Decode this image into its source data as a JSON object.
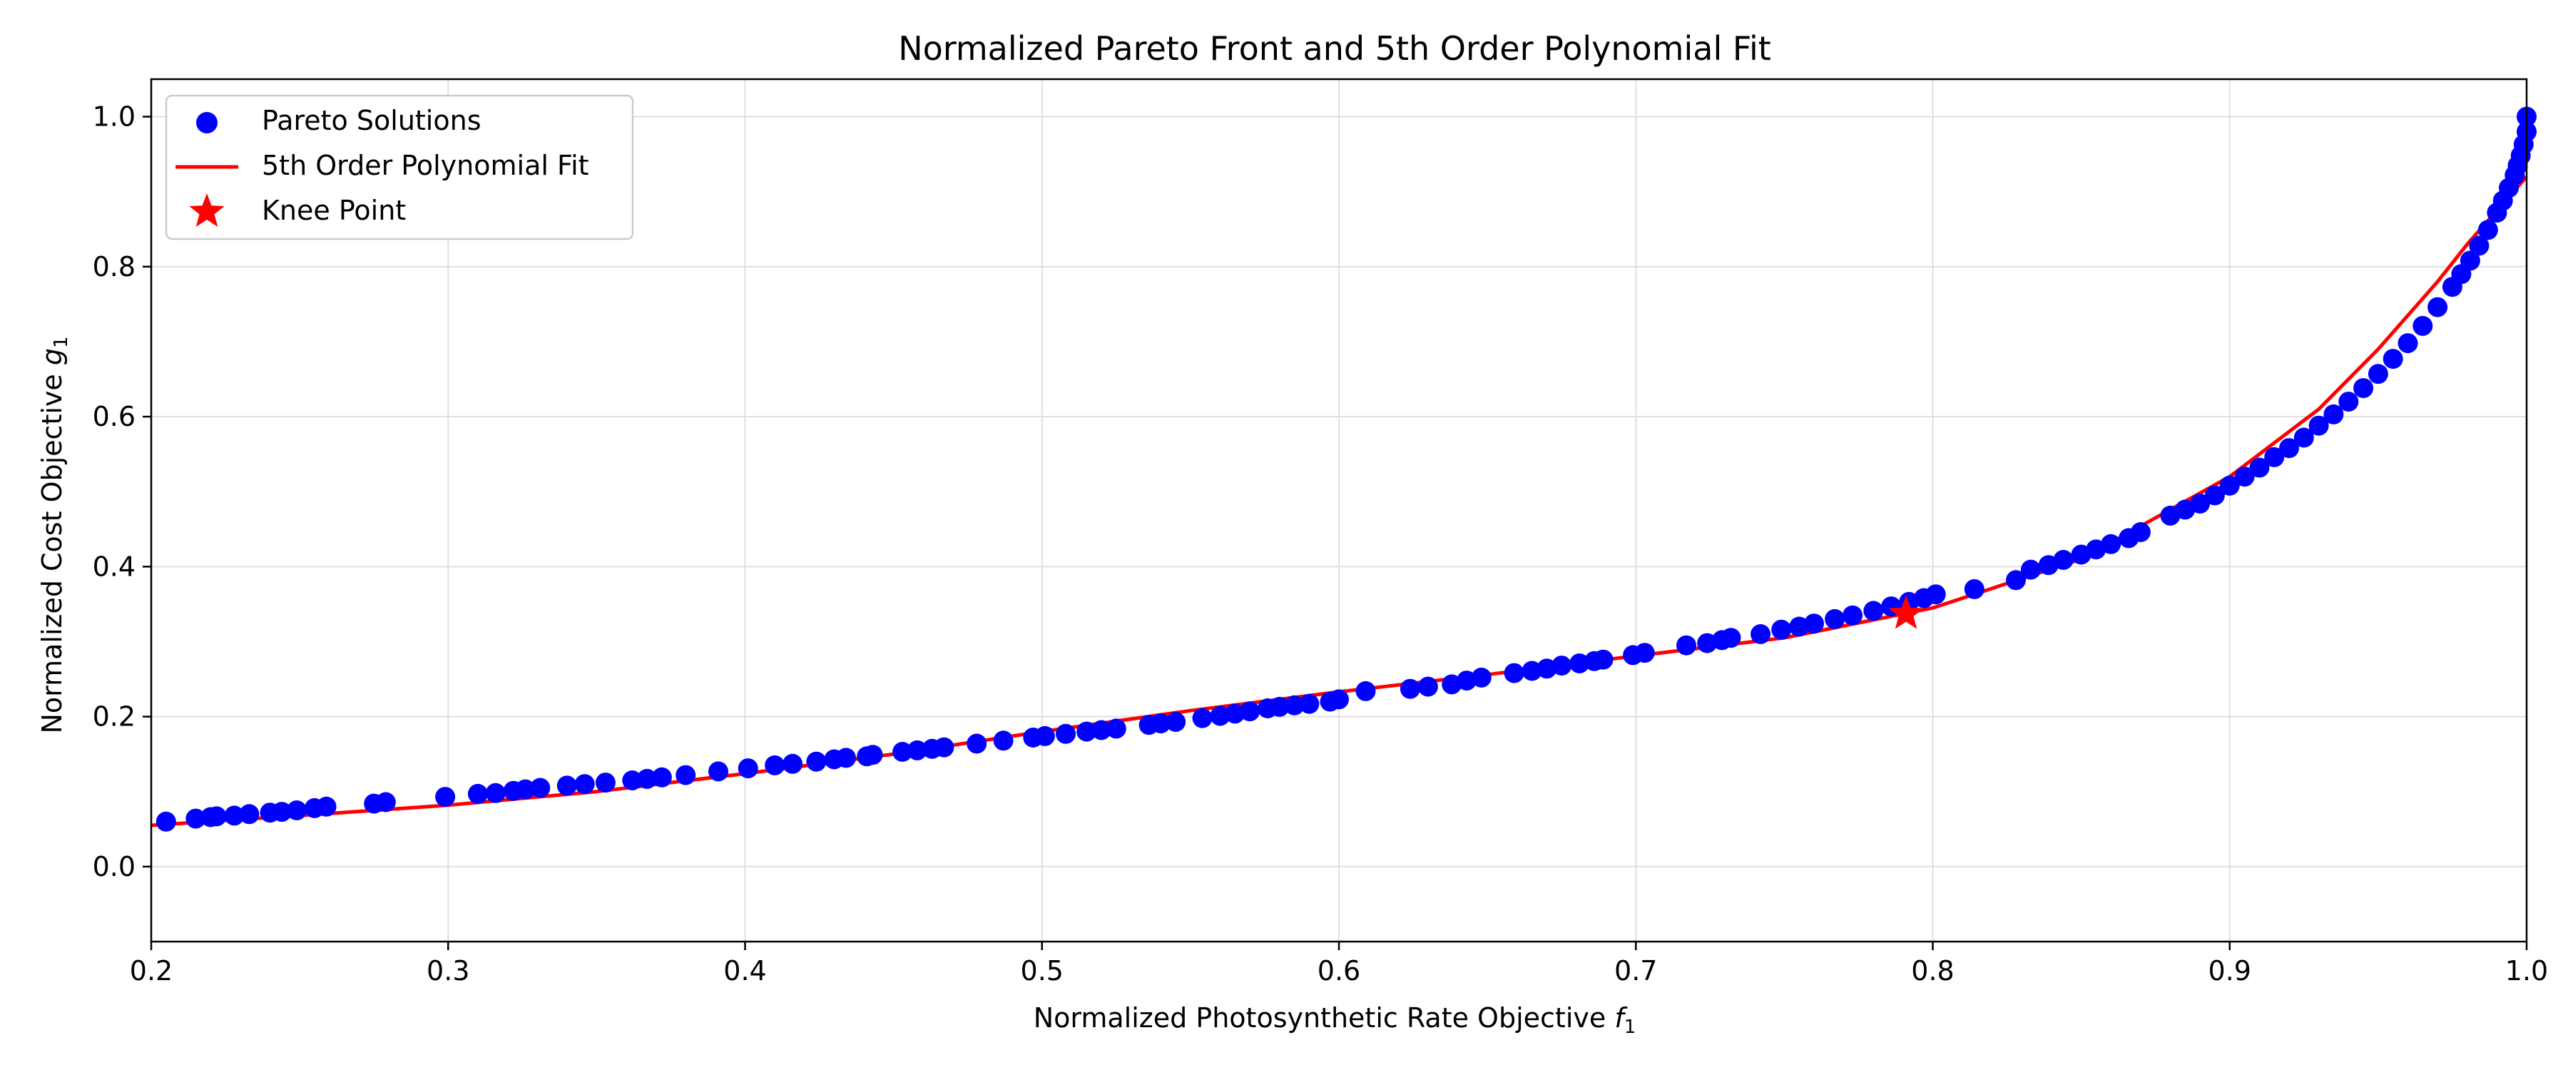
{
  "chart_data": {
    "type": "scatter",
    "title": "Normalized Pareto Front and 5th Order Polynomial Fit",
    "xlabel": "Normalized Photosynthetic Rate Objective",
    "xlabel_symbol": "f",
    "xlabel_sub": "1",
    "ylabel": "Normalized Cost Objective",
    "ylabel_symbol": "g",
    "ylabel_sub": "1",
    "xlim": [
      0.2,
      1.0
    ],
    "ylim": [
      -0.1,
      1.05
    ],
    "xticks": [
      "0.2",
      "0.3",
      "0.4",
      "0.5",
      "0.6",
      "0.7",
      "0.8",
      "0.9",
      "1.0"
    ],
    "yticks": [
      "0.0",
      "0.2",
      "0.4",
      "0.6",
      "0.8",
      "1.0"
    ],
    "grid": true,
    "legend_position": "upper-left",
    "colors": {
      "points": "#0000ff",
      "fit": "#ff0000",
      "knee": "#ff0000",
      "grid": "#e0e0e0"
    },
    "series": [
      {
        "name": "Pareto Solutions",
        "kind": "scatter",
        "x": [
          0.205,
          0.215,
          0.22,
          0.222,
          0.228,
          0.233,
          0.24,
          0.244,
          0.249,
          0.255,
          0.259,
          0.275,
          0.279,
          0.299,
          0.31,
          0.316,
          0.322,
          0.326,
          0.331,
          0.34,
          0.346,
          0.353,
          0.362,
          0.367,
          0.372,
          0.38,
          0.391,
          0.401,
          0.41,
          0.416,
          0.424,
          0.43,
          0.434,
          0.441,
          0.443,
          0.453,
          0.458,
          0.463,
          0.467,
          0.478,
          0.487,
          0.497,
          0.501,
          0.508,
          0.515,
          0.52,
          0.525,
          0.536,
          0.54,
          0.545,
          0.554,
          0.56,
          0.565,
          0.57,
          0.576,
          0.58,
          0.585,
          0.59,
          0.597,
          0.6,
          0.609,
          0.624,
          0.63,
          0.638,
          0.643,
          0.648,
          0.659,
          0.665,
          0.67,
          0.675,
          0.681,
          0.686,
          0.689,
          0.699,
          0.703,
          0.717,
          0.724,
          0.729,
          0.732,
          0.742,
          0.749,
          0.755,
          0.76,
          0.767,
          0.773,
          0.78,
          0.786,
          0.792,
          0.797,
          0.801,
          0.814,
          0.828,
          0.833,
          0.839,
          0.844,
          0.85,
          0.855,
          0.86,
          0.866,
          0.87,
          0.88,
          0.885,
          0.89,
          0.895,
          0.9,
          0.905,
          0.91,
          0.915,
          0.92,
          0.925,
          0.93,
          0.935,
          0.94,
          0.945,
          0.95,
          0.955,
          0.96,
          0.965,
          0.97,
          0.975,
          0.978,
          0.981,
          0.984,
          0.987,
          0.99,
          0.992,
          0.994,
          0.996,
          0.997,
          0.998,
          0.999,
          1.0,
          1.0
        ],
        "y": [
          0.06,
          0.064,
          0.066,
          0.067,
          0.068,
          0.07,
          0.072,
          0.073,
          0.075,
          0.078,
          0.08,
          0.084,
          0.086,
          0.093,
          0.097,
          0.098,
          0.101,
          0.103,
          0.105,
          0.108,
          0.11,
          0.112,
          0.115,
          0.117,
          0.119,
          0.122,
          0.127,
          0.131,
          0.135,
          0.137,
          0.14,
          0.143,
          0.145,
          0.147,
          0.149,
          0.153,
          0.155,
          0.157,
          0.159,
          0.164,
          0.168,
          0.172,
          0.174,
          0.177,
          0.18,
          0.182,
          0.184,
          0.189,
          0.191,
          0.193,
          0.198,
          0.201,
          0.204,
          0.207,
          0.211,
          0.213,
          0.215,
          0.217,
          0.22,
          0.223,
          0.234,
          0.237,
          0.24,
          0.243,
          0.248,
          0.252,
          0.258,
          0.261,
          0.264,
          0.268,
          0.271,
          0.274,
          0.276,
          0.282,
          0.285,
          0.295,
          0.298,
          0.302,
          0.305,
          0.31,
          0.316,
          0.32,
          0.324,
          0.33,
          0.335,
          0.341,
          0.347,
          0.353,
          0.358,
          0.363,
          0.37,
          0.382,
          0.396,
          0.402,
          0.409,
          0.416,
          0.423,
          0.43,
          0.438,
          0.446,
          0.468,
          0.476,
          0.484,
          0.495,
          0.508,
          0.52,
          0.532,
          0.546,
          0.558,
          0.572,
          0.588,
          0.603,
          0.62,
          0.638,
          0.657,
          0.677,
          0.698,
          0.721,
          0.746,
          0.773,
          0.79,
          0.808,
          0.828,
          0.849,
          0.872,
          0.888,
          0.905,
          0.922,
          0.935,
          0.948,
          0.963,
          0.98,
          1.0
        ]
      },
      {
        "name": "5th Order Polynomial Fit",
        "kind": "line",
        "x": [
          0.2,
          0.25,
          0.3,
          0.35,
          0.4,
          0.45,
          0.5,
          0.55,
          0.6,
          0.65,
          0.7,
          0.75,
          0.8,
          0.85,
          0.9,
          0.93,
          0.95,
          0.97,
          0.98,
          0.99,
          1.0
        ],
        "y": [
          0.055,
          0.068,
          0.082,
          0.1,
          0.124,
          0.15,
          0.18,
          0.208,
          0.233,
          0.256,
          0.281,
          0.305,
          0.345,
          0.41,
          0.52,
          0.61,
          0.69,
          0.78,
          0.83,
          0.875,
          0.92
        ]
      },
      {
        "name": "Knee Point",
        "kind": "star",
        "x": [
          0.791
        ],
        "y": [
          0.337
        ]
      }
    ]
  }
}
